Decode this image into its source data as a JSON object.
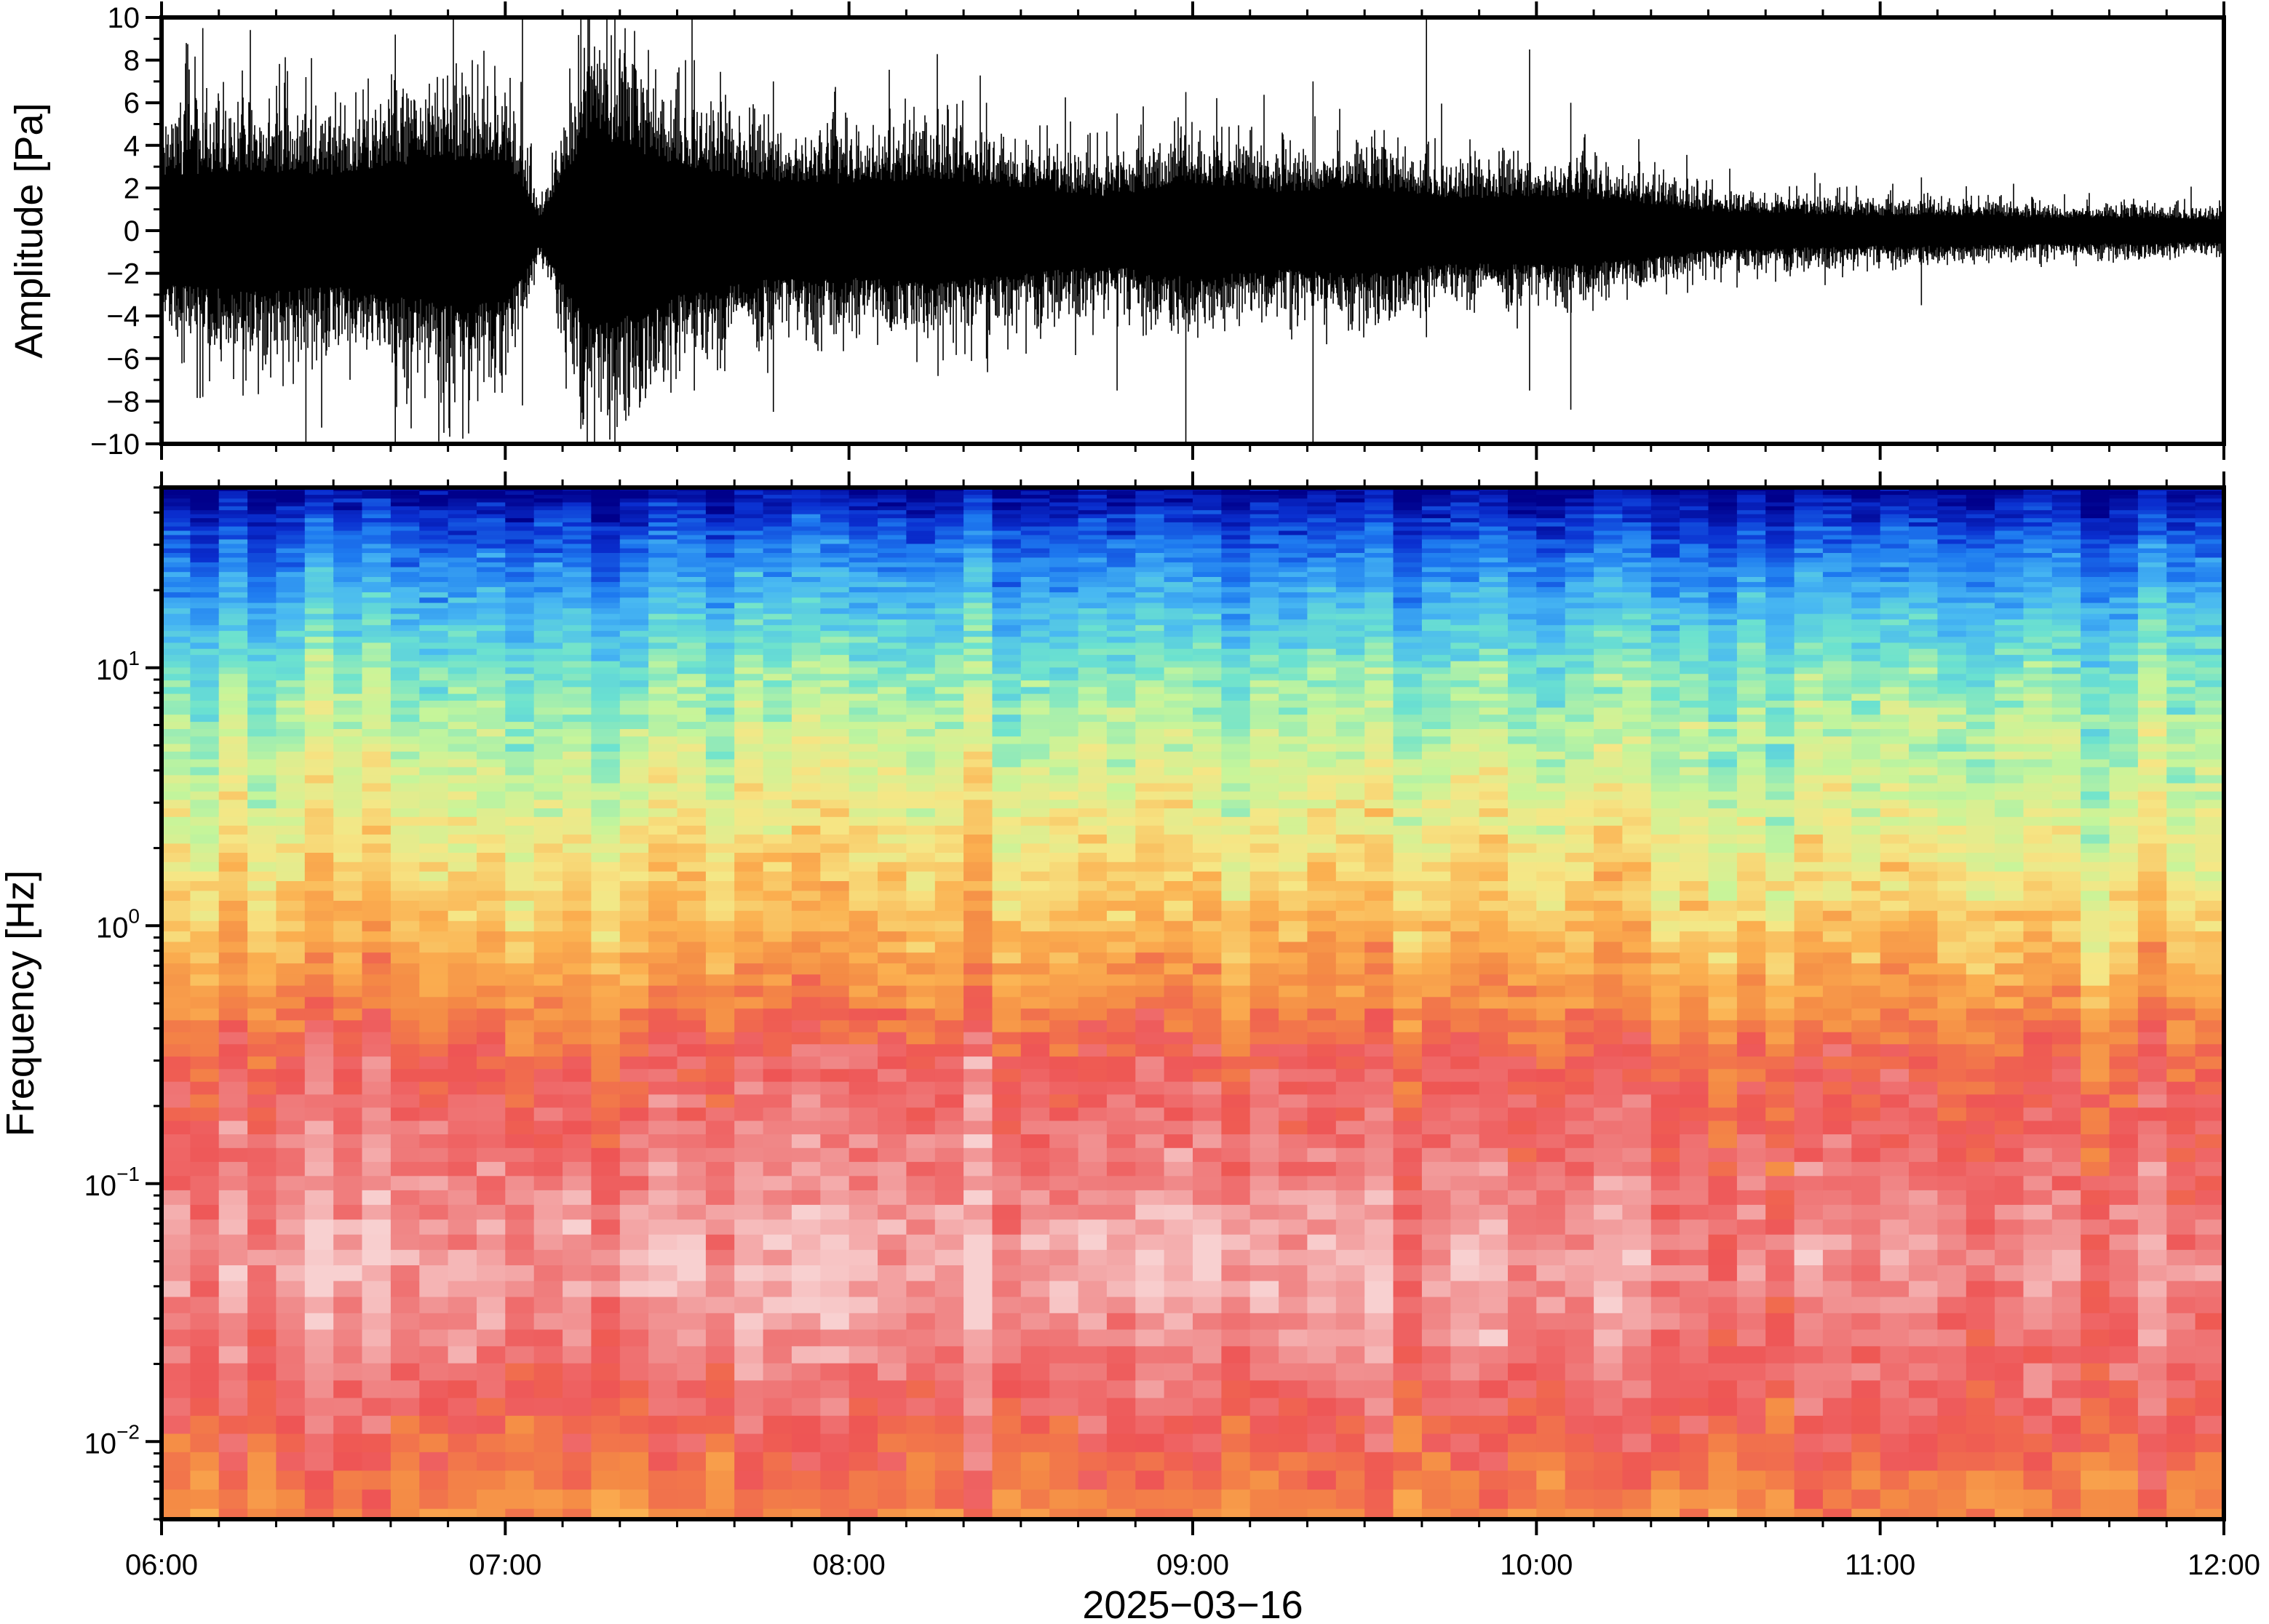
{
  "chart_data": [
    {
      "type": "line",
      "ylabel": "Amplitude [Pa]",
      "ylim": [
        -10,
        10
      ],
      "yticks": [
        -10,
        -8,
        -6,
        -4,
        -2,
        0,
        2,
        4,
        6,
        8,
        10
      ],
      "ytick_labels": [
        "−10",
        "−8",
        "−6",
        "−4",
        "−2",
        "0",
        "2",
        "4",
        "6",
        "8",
        "10"
      ],
      "xlim": [
        "06:00",
        "12:00"
      ],
      "series": [
        {
          "color": "#000000",
          "envelope_hours": [
            6.0,
            6.25,
            6.5,
            6.75,
            7.0,
            7.1,
            7.25,
            7.5,
            7.75,
            8.0,
            8.25,
            8.5,
            8.75,
            9.0,
            9.25,
            9.5,
            9.75,
            10.0,
            10.25,
            10.5,
            10.75,
            11.0,
            11.25,
            11.5,
            11.75,
            12.0
          ],
          "envelope_pa": [
            2.5,
            2.8,
            2.6,
            3.2,
            3.3,
            0.6,
            4.5,
            3.0,
            2.3,
            2.2,
            2.4,
            2.0,
            1.6,
            2.2,
            1.8,
            2.0,
            1.5,
            1.6,
            1.4,
            0.9,
            0.8,
            0.7,
            0.7,
            0.6,
            0.6,
            0.5
          ],
          "spikes": [
            {
              "hour": 6.12,
              "max": 9.5,
              "min": -7.8
            },
            {
              "hour": 6.42,
              "max": 7.2,
              "min": -10
            },
            {
              "hour": 6.68,
              "max": 9.2,
              "min": -10
            },
            {
              "hour": 6.92,
              "max": 7.8,
              "min": -8.0
            },
            {
              "hour": 7.05,
              "max": 10,
              "min": -8.2
            },
            {
              "hour": 7.22,
              "max": 10,
              "min": -9.3
            },
            {
              "hour": 7.55,
              "max": 8.0,
              "min": -7.5
            },
            {
              "hour": 7.78,
              "max": 7.0,
              "min": -8.5
            },
            {
              "hour": 8.4,
              "max": 6.0,
              "min": -6.0
            },
            {
              "hour": 8.78,
              "max": 5.5,
              "min": -7.5
            },
            {
              "hour": 8.98,
              "max": 6.5,
              "min": -10
            },
            {
              "hour": 9.35,
              "max": 7.0,
              "min": -10
            },
            {
              "hour": 9.68,
              "max": 10,
              "min": -5.0
            },
            {
              "hour": 9.98,
              "max": 8.5,
              "min": -7.5
            },
            {
              "hour": 10.1,
              "max": 6.0,
              "min": -8.4
            },
            {
              "hour": 11.12,
              "max": 2.5,
              "min": -3.5
            }
          ]
        }
      ]
    },
    {
      "type": "heatmap",
      "ylabel": "Frequency [Hz]",
      "yscale": "log",
      "ylim": [
        0.005,
        50
      ],
      "yticks": [
        0.01,
        0.1,
        1,
        10
      ],
      "ytick_labels": [
        {
          "base": "10",
          "exp": "−2"
        },
        {
          "base": "10",
          "exp": "−1"
        },
        {
          "base": "10",
          "exp": "0"
        },
        {
          "base": "10",
          "exp": "1"
        }
      ],
      "xlabel": "2025−03−16",
      "xlim": [
        "06:00",
        "12:00"
      ],
      "xticks": [
        "06:00",
        "07:00",
        "08:00",
        "09:00",
        "10:00",
        "11:00",
        "12:00"
      ],
      "colormap": [
        "#00008b",
        "#0a2fd0",
        "#1e7bf0",
        "#48b8f2",
        "#6ce2cf",
        "#c6f59a",
        "#f6e685",
        "#fbb050",
        "#f48a45",
        "#ee5555",
        "#f08a8a",
        "#f8d0d0"
      ],
      "level_by_frequency": {
        "frequency_hz": [
          50,
          35,
          20,
          10,
          5,
          2,
          1,
          0.5,
          0.3,
          0.1,
          0.05,
          0.03,
          0.015,
          0.005
        ],
        "level": [
          0.0,
          0.12,
          0.25,
          0.38,
          0.46,
          0.55,
          0.62,
          0.72,
          0.82,
          0.9,
          0.95,
          0.92,
          0.84,
          0.72
        ]
      }
    }
  ]
}
